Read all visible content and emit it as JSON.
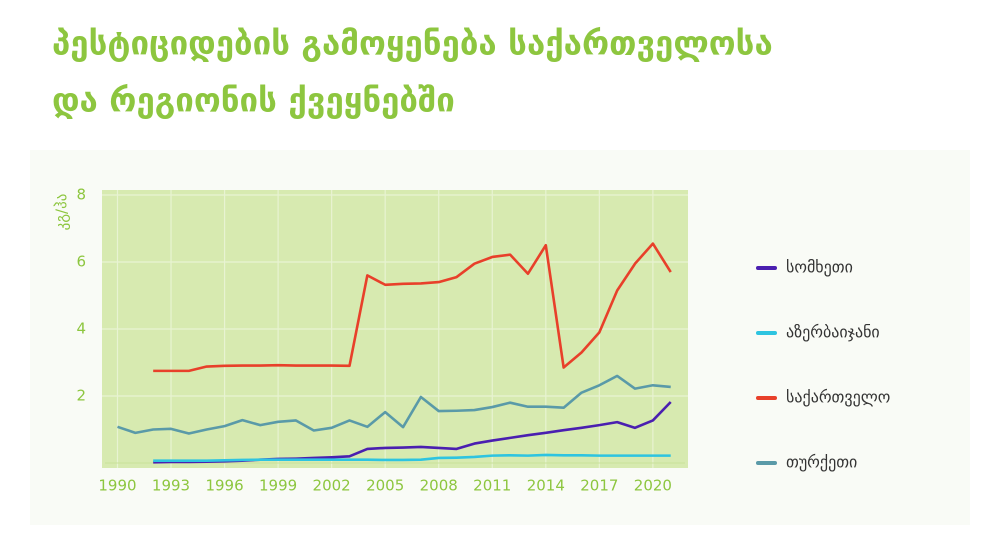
{
  "chart_data": {
    "type": "line",
    "title": [
      "პესტიციდების გამოყენება საქართველოსა",
      "და რეგიონის ქვეყნებში"
    ],
    "y_label": "კგ/ჰა",
    "x": [
      1990,
      1991,
      1992,
      1993,
      1994,
      1995,
      1996,
      1997,
      1998,
      1999,
      2000,
      2001,
      2002,
      2003,
      2004,
      2005,
      2006,
      2007,
      2008,
      2009,
      2010,
      2011,
      2012,
      2013,
      2014,
      2015,
      2016,
      2017,
      2018,
      2019,
      2020,
      2021
    ],
    "xlim": [
      1989.3,
      2021.8
    ],
    "xticks": [
      1990,
      1993,
      1996,
      1999,
      2002,
      2005,
      2008,
      2011,
      2014,
      2017,
      2020
    ],
    "ylim": [
      0,
      8
    ],
    "yticks": [
      2,
      4,
      6,
      8
    ],
    "grid": true,
    "legend": "right",
    "series": [
      {
        "name": "სომხეთი",
        "color": "#4a1fb0",
        "values": [
          null,
          null,
          0.02,
          0.03,
          0.03,
          0.04,
          0.05,
          0.07,
          0.1,
          0.12,
          0.13,
          0.15,
          0.17,
          0.2,
          0.42,
          0.45,
          0.46,
          0.48,
          0.45,
          0.42,
          0.58,
          0.67,
          0.75,
          0.83,
          0.9,
          0.98,
          1.05,
          1.13,
          1.22,
          1.05,
          1.27,
          1.82
        ]
      },
      {
        "name": "აზერბაიჯანი",
        "color": "#2ec4e0",
        "values": [
          null,
          null,
          0.07,
          0.07,
          0.07,
          0.07,
          0.08,
          0.09,
          0.1,
          0.1,
          0.1,
          0.1,
          0.1,
          0.1,
          0.1,
          0.09,
          0.09,
          0.1,
          0.15,
          0.16,
          0.18,
          0.22,
          0.23,
          0.22,
          0.24,
          0.23,
          0.23,
          0.22,
          0.22,
          0.22,
          0.22,
          0.22
        ]
      },
      {
        "name": "საქართველო",
        "color": "#e8402a",
        "values": [
          null,
          null,
          2.75,
          2.75,
          2.75,
          2.88,
          2.9,
          2.91,
          2.91,
          2.92,
          2.91,
          2.91,
          2.91,
          2.9,
          5.6,
          5.32,
          5.35,
          5.36,
          5.4,
          5.55,
          5.95,
          6.15,
          6.22,
          5.65,
          6.5,
          2.85,
          3.3,
          3.9,
          5.15,
          5.95,
          6.55,
          5.7
        ]
      },
      {
        "name": "თურქეთი",
        "color": "#5a9aa8",
        "values": [
          1.08,
          0.9,
          1.0,
          1.02,
          0.88,
          1.0,
          1.1,
          1.28,
          1.13,
          1.23,
          1.27,
          0.97,
          1.05,
          1.27,
          1.08,
          1.52,
          1.07,
          1.97,
          1.55,
          1.56,
          1.58,
          1.67,
          1.8,
          1.68,
          1.68,
          1.65,
          2.1,
          2.32,
          2.6,
          2.22,
          2.32,
          2.27
        ]
      }
    ]
  }
}
